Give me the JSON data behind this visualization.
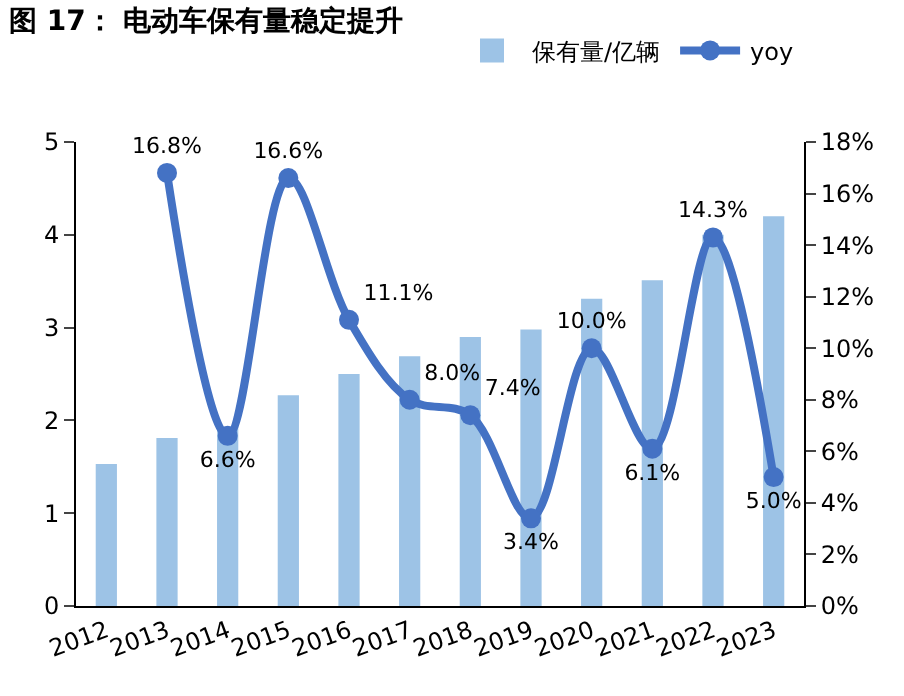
{
  "chart_data": {
    "type": "bar",
    "title": "图 17： 电动车保有量稳定提升",
    "categories": [
      "2012",
      "2013",
      "2014",
      "2015",
      "2016",
      "2017",
      "2018",
      "2019",
      "2020",
      "2021",
      "2022",
      "2023"
    ],
    "series": [
      {
        "name": "保有量/亿辆",
        "color": "#9dc3e6",
        "values": [
          1.53,
          1.81,
          1.93,
          2.27,
          2.5,
          2.69,
          2.9,
          2.98,
          3.31,
          3.51,
          4.0,
          4.2
        ]
      },
      {
        "name": "yoy",
        "type": "line",
        "axis": "y2",
        "color": "#4472c4",
        "marker": "circle",
        "values": [
          null,
          16.8,
          6.6,
          16.6,
          11.1,
          8.0,
          7.4,
          3.4,
          10.0,
          6.1,
          14.3,
          5.0
        ],
        "value_labels": [
          null,
          "16.8%",
          "6.6%",
          "16.6%",
          "11.1%",
          "8.0%",
          "7.4%",
          "3.4%",
          "10.0%",
          "6.1%",
          "14.3%",
          "5.0%"
        ]
      }
    ],
    "ylim": [
      0,
      5
    ],
    "yticks": [
      0,
      1,
      2,
      3,
      4,
      5
    ],
    "y2lim": [
      0,
      18
    ],
    "y2ticks": [
      {
        "value": 0,
        "label": "0%"
      },
      {
        "value": 2,
        "label": "2%"
      },
      {
        "value": 4,
        "label": "4%"
      },
      {
        "value": 6,
        "label": "6%"
      },
      {
        "value": 8,
        "label": "8%"
      },
      {
        "value": 10,
        "label": "10%"
      },
      {
        "value": 12,
        "label": "12%"
      },
      {
        "value": 14,
        "label": "14%"
      },
      {
        "value": 16,
        "label": "16%"
      },
      {
        "value": 18,
        "label": "18%"
      }
    ],
    "grid": false,
    "legend": "top right"
  }
}
